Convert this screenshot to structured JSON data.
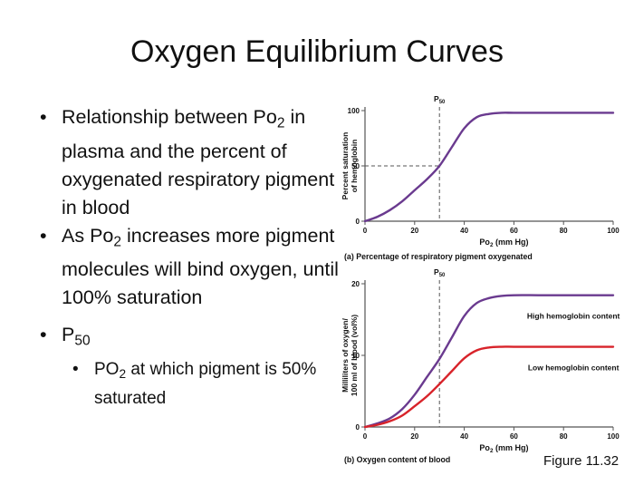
{
  "slide": {
    "title": "Oxygen Equilibrium Curves",
    "figure_label": "Figure 11.32"
  },
  "bullets": [
    {
      "parts": [
        "Relationship between Po",
        "2",
        " in plasma and the percent of oxygenated respiratory pigment in blood"
      ]
    },
    {
      "parts": [
        "As Po",
        "2",
        " increases more pigment molecules will bind oxygen, until 100% saturation"
      ]
    },
    {
      "parts": [
        "P",
        "50"
      ],
      "sub_bullets": [
        {
          "parts": [
            "PO",
            "2",
            " at which pigment is 50% saturated"
          ]
        }
      ]
    }
  ],
  "chart_data": [
    {
      "type": "line",
      "panel": "a",
      "caption": "(a) Percentage of respiratory pigment oxygenated",
      "ylabel": [
        "Percent saturation",
        "of hemoglobin"
      ],
      "xlabel": "Po2 (mm Hg)",
      "xlim": [
        0,
        100
      ],
      "ylim": [
        0,
        100
      ],
      "xticks": [
        "0",
        "20",
        "40",
        "60",
        "80",
        "100"
      ],
      "yticks": [
        "0",
        "50",
        "100"
      ],
      "p50_marker": {
        "label": "P50",
        "x": 30,
        "y": 50
      },
      "series": [
        {
          "color": "#6a3a8f",
          "x": [
            0,
            5,
            10,
            15,
            20,
            25,
            30,
            35,
            40,
            45,
            50,
            55,
            60,
            70,
            80,
            90,
            100
          ],
          "y": [
            0,
            4,
            10,
            18,
            28,
            38,
            50,
            67,
            84,
            94,
            97,
            98,
            98,
            98,
            98,
            98,
            98
          ]
        }
      ]
    },
    {
      "type": "line",
      "panel": "b",
      "caption": "(b) Oxygen content of blood",
      "ylabel": [
        "Milliliters of oxygen/",
        "100 ml of blood (vol%)"
      ],
      "xlabel": "Po2 (mm Hg)",
      "xlim": [
        0,
        100
      ],
      "ylim": [
        0,
        20
      ],
      "xticks": [
        "0",
        "20",
        "40",
        "60",
        "80",
        "100"
      ],
      "yticks": [
        "0",
        "10",
        "20"
      ],
      "p50_marker": {
        "label": "P50",
        "x": 30
      },
      "series": [
        {
          "name": "High hemoglobin content",
          "color": "#6a3a8f",
          "x": [
            0,
            5,
            10,
            15,
            20,
            25,
            30,
            35,
            40,
            45,
            50,
            55,
            60,
            70,
            80,
            90,
            100
          ],
          "y": [
            0,
            0.5,
            1.2,
            2.5,
            4.5,
            7,
            9.5,
            12.5,
            15.5,
            17.3,
            18,
            18.3,
            18.4,
            18.4,
            18.4,
            18.4,
            18.4
          ]
        },
        {
          "name": "Low hemoglobin content",
          "color": "#d8232a",
          "x": [
            0,
            5,
            10,
            15,
            20,
            25,
            30,
            35,
            40,
            45,
            50,
            55,
            60,
            70,
            80,
            90,
            100
          ],
          "y": [
            0,
            0.3,
            0.8,
            1.6,
            2.9,
            4.3,
            6,
            7.8,
            9.6,
            10.7,
            11.1,
            11.2,
            11.2,
            11.2,
            11.2,
            11.2,
            11.2
          ]
        }
      ]
    }
  ]
}
